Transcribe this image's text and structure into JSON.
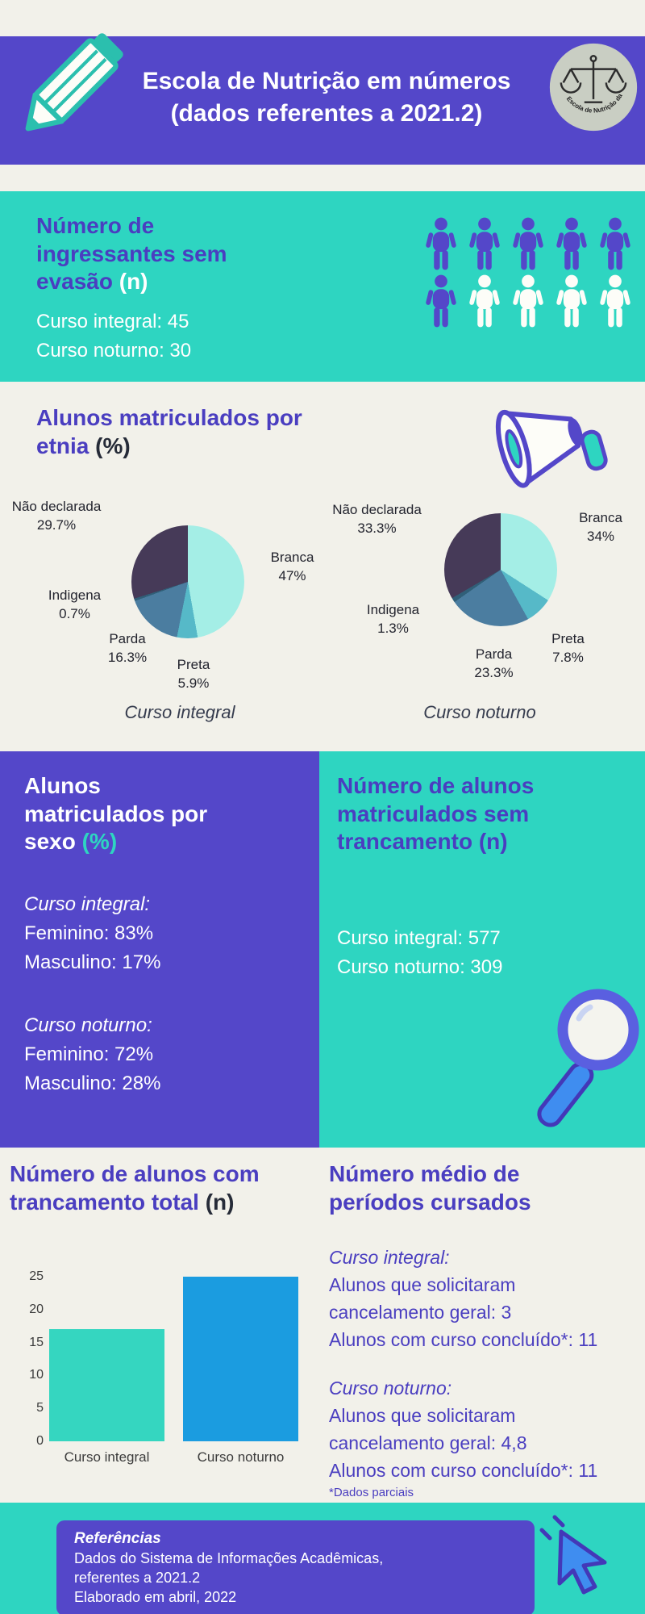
{
  "colors": {
    "purple": "#5447c9",
    "teal": "#2ed5c1",
    "cream": "#f2f1ea",
    "heading_purple": "#4a3ec0",
    "bar_integral": "#35d6c0",
    "bar_noturno": "#1b9ce0",
    "pie_branca": "#a4eee6",
    "pie_preta": "#56b9c8",
    "pie_parda": "#4b7da0",
    "pie_indigena": "#305f78",
    "pie_nao_declarada": "#463a58"
  },
  "header": {
    "title_line1": "Escola de Nutrição em números",
    "title_line2": "(dados referentes a 2021.2)",
    "logo_text": "Escola de Nutrição da UniRio"
  },
  "ingressantes": {
    "title": "Número de ingressantes sem evasão ",
    "suffix": "(n)",
    "lines": [
      "Curso integral: 45",
      "Curso noturno: 30"
    ],
    "icon_rows": [
      [
        "purple",
        "purple",
        "purple",
        "purple",
        "purple"
      ],
      [
        "purple",
        "white",
        "white",
        "white",
        "white"
      ]
    ]
  },
  "etnia": {
    "title": "Alunos matriculados por etnia ",
    "suffix": "(%)",
    "pies": [
      {
        "caption": "Curso integral",
        "labels": {
          "nao_declarada": {
            "name": "Não declarada",
            "pct": "29.7%"
          },
          "branca": {
            "name": "Branca",
            "pct": "47%"
          },
          "indigena": {
            "name": "Indigena",
            "pct": "0.7%"
          },
          "parda": {
            "name": "Parda",
            "pct": "16.3%"
          },
          "preta": {
            "name": "Preta",
            "pct": "5.9%"
          }
        }
      },
      {
        "caption": "Curso noturno",
        "labels": {
          "nao_declarada": {
            "name": "Não declarada",
            "pct": "33.3%"
          },
          "branca": {
            "name": "Branca",
            "pct": "34%"
          },
          "indigena": {
            "name": "Indigena",
            "pct": "1.3%"
          },
          "parda": {
            "name": "Parda",
            "pct": "23.3%"
          },
          "preta": {
            "name": "Preta",
            "pct": "7.8%"
          }
        }
      }
    ]
  },
  "sexo": {
    "title": "Alunos matriculados por sexo ",
    "suffix": "(%)",
    "groups": [
      {
        "subtitle": "Curso integral:",
        "lines": [
          "Feminino: 83%",
          "Masculino: 17%"
        ]
      },
      {
        "subtitle": "Curso noturno:",
        "lines": [
          "Feminino: 72%",
          "Masculino: 28%"
        ]
      }
    ]
  },
  "sem_trancamento": {
    "title": "Número de alunos matriculados sem trancamento ",
    "suffix": "(n)",
    "lines": [
      "Curso integral: 577",
      "Curso noturno: 309"
    ]
  },
  "trancamento_total": {
    "title": "Número de alunos com trancamento total ",
    "suffix": "(n)"
  },
  "periodos": {
    "title": "Número médio de períodos cursados",
    "groups": [
      {
        "subtitle": "Curso integral:",
        "lines": [
          "Alunos que solicitaram",
          "cancelamento geral: 3",
          "Alunos com curso concluído*: 11"
        ]
      },
      {
        "subtitle": "Curso noturno:",
        "lines": [
          "Alunos que solicitaram",
          "cancelamento geral: 4,8",
          "Alunos com curso concluído*: 11"
        ]
      }
    ],
    "footnote": "*Dados parciais"
  },
  "footer": {
    "title": "Referências",
    "lines": [
      "Dados do Sistema de Informações Acadêmicas,",
      "referentes a 2021.2",
      "Elaborado em abril, 2022"
    ]
  },
  "chart_data": [
    {
      "type": "pie",
      "title": "Curso integral",
      "labels": [
        "Branca",
        "Preta",
        "Parda",
        "Indigena",
        "Não declarada"
      ],
      "values": [
        47,
        5.9,
        16.3,
        0.7,
        29.7
      ],
      "colors": [
        "#a4eee6",
        "#56b9c8",
        "#4b7da0",
        "#305f78",
        "#463a58"
      ]
    },
    {
      "type": "pie",
      "title": "Curso noturno",
      "labels": [
        "Branca",
        "Preta",
        "Parda",
        "Indigena",
        "Não declarada"
      ],
      "values": [
        34,
        7.8,
        23.3,
        1.3,
        33.3
      ],
      "colors": [
        "#a4eee6",
        "#56b9c8",
        "#4b7da0",
        "#305f78",
        "#463a58"
      ]
    },
    {
      "type": "bar",
      "title": "Número de alunos com trancamento total (n)",
      "categories": [
        "Curso integral",
        "Curso noturno"
      ],
      "values": [
        17,
        25
      ],
      "colors": [
        "#35d6c0",
        "#1b9ce0"
      ],
      "ylim": [
        0,
        25
      ],
      "yticks": [
        0,
        5,
        10,
        15,
        20,
        25
      ],
      "grid": false,
      "legend": false
    }
  ]
}
